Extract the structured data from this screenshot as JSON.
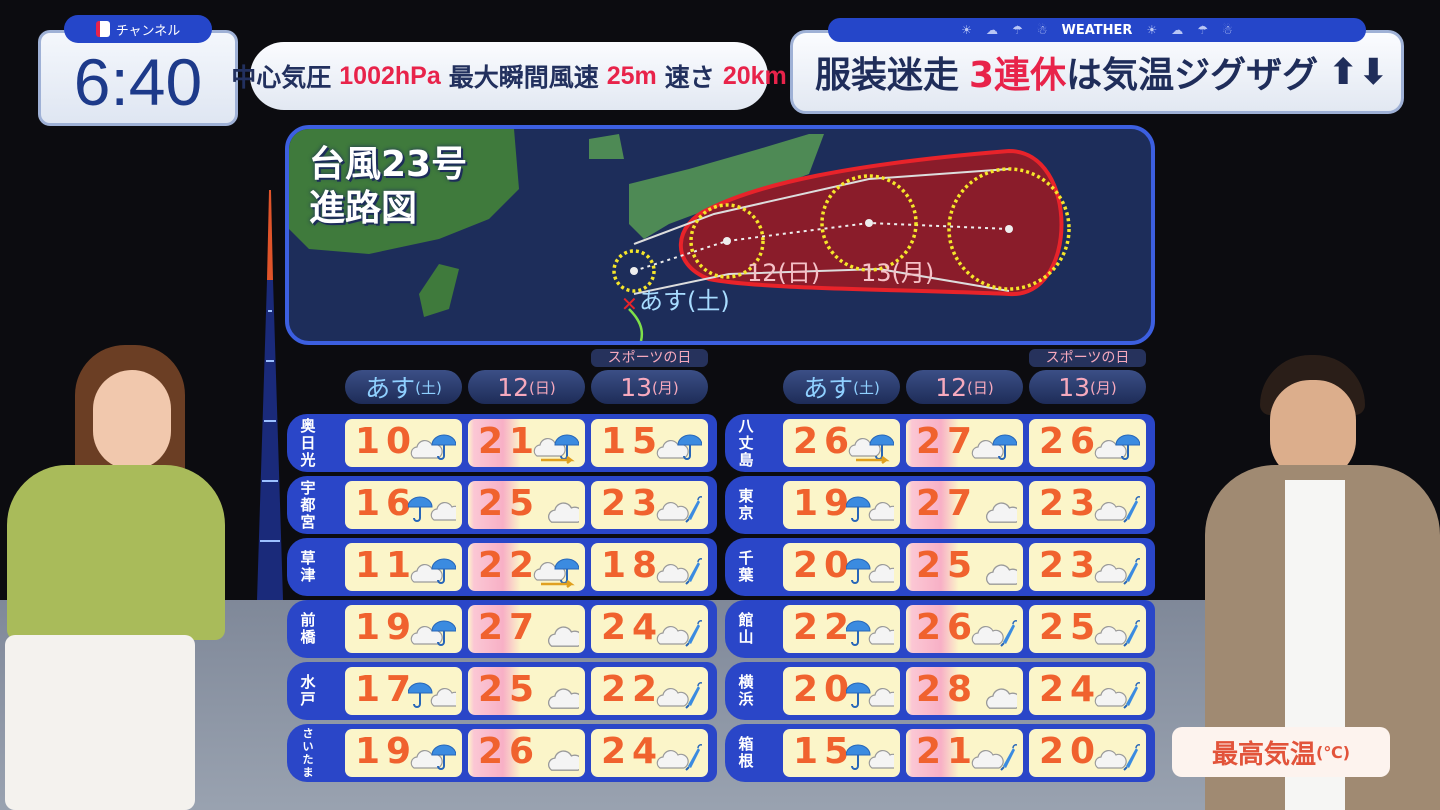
{
  "channel": {
    "label": "チャンネル",
    "logo_icon": "channel-logo-icon"
  },
  "clock": "6:40",
  "typhoon_info": {
    "pressure_label": "中心気圧",
    "pressure": "1002hPa",
    "gust_label": "最大瞬間風速",
    "gust": "25m",
    "speed_label": "速さ",
    "speed": "20km"
  },
  "weather_bar": {
    "label": "WEATHER",
    "icons": [
      "sun-icon",
      "cloud-icon",
      "umbrella-icon",
      "snowman-icon"
    ]
  },
  "headline": {
    "part1": "服装迷走",
    "highlight": "3連休",
    "part2": "は気温ジグザグ",
    "icons": [
      "up-arrow-icon",
      "down-arrow-icon"
    ]
  },
  "map": {
    "title_line1": "台風23号",
    "title_line2": "進路図",
    "labels": [
      "あす(土)",
      "12(日)",
      "13(月)"
    ],
    "colors": {
      "storm_area": "#8a1c2a",
      "forecast_circle": "#f5e62a"
    }
  },
  "columns": [
    {
      "day": "あす",
      "dow": "(土)",
      "sub": ""
    },
    {
      "day": "12",
      "dow": "(日)",
      "sub": ""
    },
    {
      "day": "13",
      "dow": "(月)",
      "sub": "スポーツの日"
    }
  ],
  "colors": {
    "temp": "#f0622e",
    "cell": "#fbf5c9",
    "row": "#2a46c8",
    "accent_red": "#e8234a"
  },
  "left_table": [
    {
      "city": "奥日光",
      "temps": [
        "10",
        "21",
        "15"
      ],
      "weather": [
        "cloud-rain",
        "cloud-rain-wind",
        "cloud-rain"
      ]
    },
    {
      "city": "宇都宮",
      "temps": [
        "16",
        "25",
        "23"
      ],
      "weather": [
        "rain-cloud",
        "cloud",
        "cloud-closed-umbrella"
      ]
    },
    {
      "city": "草津",
      "temps": [
        "11",
        "22",
        "18"
      ],
      "weather": [
        "cloud-rain",
        "cloud-rain-wind",
        "cloud-closed-umbrella"
      ]
    },
    {
      "city": "前橋",
      "temps": [
        "19",
        "27",
        "24"
      ],
      "weather": [
        "cloud-rain",
        "cloud",
        "cloud-closed-umbrella"
      ]
    },
    {
      "city": "水戸",
      "temps": [
        "17",
        "25",
        "22"
      ],
      "weather": [
        "rain-cloud",
        "cloud",
        "cloud-closed-umbrella"
      ]
    },
    {
      "city": "さいたま",
      "temps": [
        "19",
        "26",
        "24"
      ],
      "weather": [
        "cloud-rain",
        "cloud",
        "cloud-closed-umbrella"
      ]
    }
  ],
  "right_table": [
    {
      "city": "八丈島",
      "temps": [
        "26",
        "27",
        "26"
      ],
      "weather": [
        "cloud-rain-wind",
        "cloud-rain",
        "cloud-rain"
      ]
    },
    {
      "city": "東京",
      "temps": [
        "19",
        "27",
        "23"
      ],
      "weather": [
        "rain-cloud",
        "cloud",
        "cloud-closed-umbrella"
      ]
    },
    {
      "city": "千葉",
      "temps": [
        "20",
        "25",
        "23"
      ],
      "weather": [
        "rain-cloud",
        "cloud",
        "cloud-closed-umbrella"
      ]
    },
    {
      "city": "館山",
      "temps": [
        "22",
        "26",
        "25"
      ],
      "weather": [
        "rain-cloud",
        "cloud-closed-umbrella",
        "cloud-closed-umbrella"
      ]
    },
    {
      "city": "横浜",
      "temps": [
        "20",
        "28",
        "24"
      ],
      "weather": [
        "rain-cloud",
        "cloud",
        "cloud-closed-umbrella"
      ]
    },
    {
      "city": "箱根",
      "temps": [
        "15",
        "21",
        "20"
      ],
      "weather": [
        "rain-cloud",
        "cloud-closed-umbrella",
        "cloud-closed-umbrella"
      ]
    }
  ],
  "legend": {
    "label": "最高気温",
    "unit": "(℃)"
  }
}
